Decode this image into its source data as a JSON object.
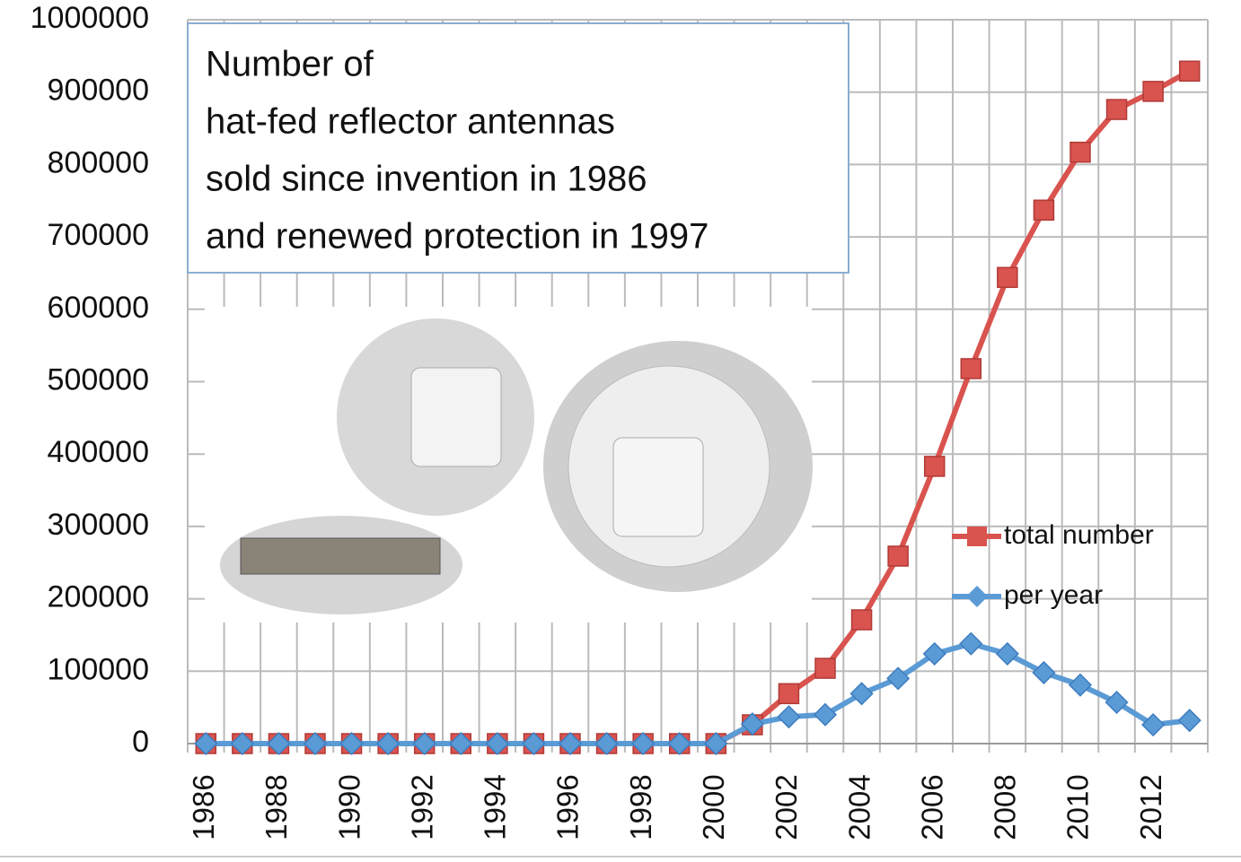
{
  "chart_data": {
    "type": "line",
    "annotation": [
      "Number of",
      "hat-fed reflector antennas",
      "sold since invention in 1986",
      "and renewed protection in 1997"
    ],
    "categories": [
      "1986",
      null,
      "1988",
      null,
      "1990",
      null,
      "1992",
      null,
      "1994",
      null,
      "1996",
      null,
      "1998",
      null,
      "2000",
      null,
      "2002",
      null,
      "2004",
      null,
      "2006",
      null,
      "2008",
      null,
      "2010",
      null,
      "2012",
      null
    ],
    "series": [
      {
        "name": "total number",
        "color": "#d9534f",
        "marker": "square",
        "values": [
          0,
          0,
          0,
          0,
          0,
          0,
          0,
          0,
          0,
          0,
          0,
          0,
          0,
          0,
          0,
          26000,
          69000,
          104000,
          171000,
          259000,
          383000,
          518000,
          644000,
          737000,
          817000,
          876000,
          901000,
          929000
        ]
      },
      {
        "name": "per year",
        "color": "#5b9bd5",
        "marker": "diamond",
        "values": [
          0,
          0,
          0,
          0,
          0,
          0,
          0,
          0,
          0,
          0,
          0,
          0,
          0,
          0,
          0,
          27000,
          37000,
          40000,
          69000,
          90000,
          124000,
          138000,
          124000,
          98000,
          81000,
          57000,
          26000,
          32000
        ]
      }
    ],
    "ylim": [
      0,
      1000000
    ],
    "yticks": [
      0,
      100000,
      200000,
      300000,
      400000,
      500000,
      600000,
      700000,
      800000,
      900000,
      1000000
    ],
    "grid": true
  }
}
